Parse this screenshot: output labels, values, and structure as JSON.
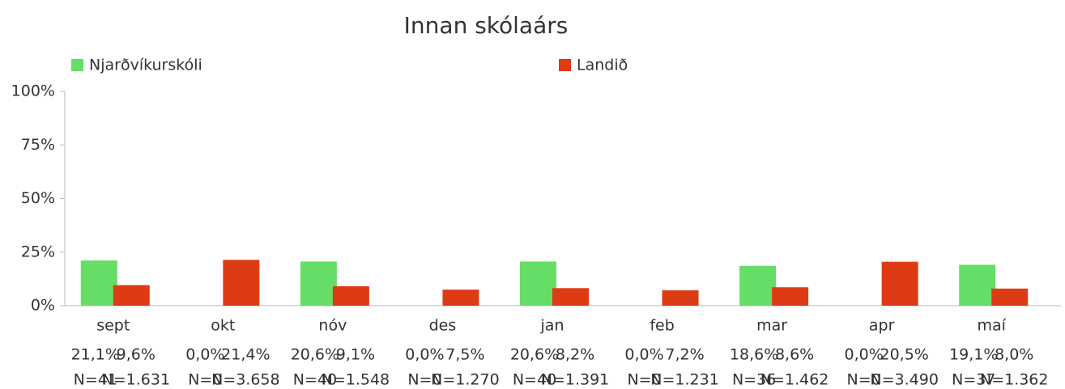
{
  "chart_data": {
    "type": "bar",
    "title": "Innan skólaárs",
    "categories": [
      "sept",
      "okt",
      "nóv",
      "des",
      "jan",
      "feb",
      "mar",
      "apr",
      "maí"
    ],
    "series": [
      {
        "name": "Njarðvíkurskóli",
        "color": "#66dd66",
        "values": [
          21.1,
          0,
          20.6,
          0,
          20.6,
          0,
          18.6,
          0,
          19.1
        ],
        "value_labels": [
          "21,1%",
          "0,0%",
          "20,6%",
          "0,0%",
          "20,6%",
          "0,0%",
          "18,6%",
          "0,0%",
          "19,1%"
        ],
        "n_labels": [
          "N=41",
          "N=0",
          "N=40",
          "N=0",
          "N=40",
          "N=0",
          "N=36",
          "N=0",
          "N=37"
        ]
      },
      {
        "name": "Landið",
        "color": "#dd3b14",
        "values": [
          9.6,
          21.4,
          9.1,
          7.5,
          8.2,
          7.2,
          8.6,
          20.5,
          8.0
        ],
        "value_labels": [
          "9,6%",
          "21,4%",
          "9,1%",
          "7,5%",
          "8,2%",
          "7,2%",
          "8,6%",
          "20,5%",
          "8,0%"
        ],
        "n_labels": [
          "N=1.631",
          "N=3.658",
          "N=1.548",
          "N=1.270",
          "N=1.391",
          "N=1.231",
          "N=1.462",
          "N=3.490",
          "N=1.362"
        ]
      }
    ],
    "ylim": [
      0,
      100
    ],
    "yticks": [
      {
        "value": 0,
        "label": "0%"
      },
      {
        "value": 25,
        "label": "25%"
      },
      {
        "value": 50,
        "label": "50%"
      },
      {
        "value": 75,
        "label": "75%"
      },
      {
        "value": 100,
        "label": "100%"
      }
    ],
    "grid": false,
    "legend": "top"
  }
}
